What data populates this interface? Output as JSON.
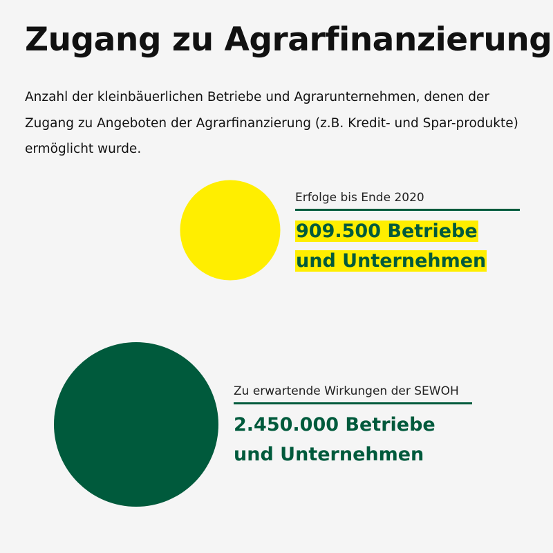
{
  "title": "Zugang zu Agrarfinanzierung",
  "subtitle": "Anzahl der kleinbäuerlichen Betriebe und Agrarunternehmen, denen der Zugang zu Angeboten der Agrarfinanzierung (z.B. Kredit- und Spar-produkte) ermöglicht wurde.",
  "colors": {
    "background": "#f5f5f5",
    "yellow": "#ffee00",
    "green": "#005a3c"
  },
  "chart_data": {
    "type": "proportional-area circles",
    "categories": [
      "Erfolge bis Ende 2020",
      "Zu erwartende Wirkungen der SEWOH"
    ],
    "values": [
      909500,
      2450000
    ],
    "unit": "Betriebe und Unternehmen",
    "colors": [
      "#ffee00",
      "#005a3c"
    ],
    "items": [
      {
        "label": "Erfolge bis Ende 2020",
        "value_text": "909.500 Betriebe und Unternehmen",
        "value": 909500
      },
      {
        "label": "Zu erwartende Wirkungen der SEWOH",
        "value_text": "2.450.000 Betriebe und Unternehmen",
        "value": 2450000
      }
    ]
  }
}
